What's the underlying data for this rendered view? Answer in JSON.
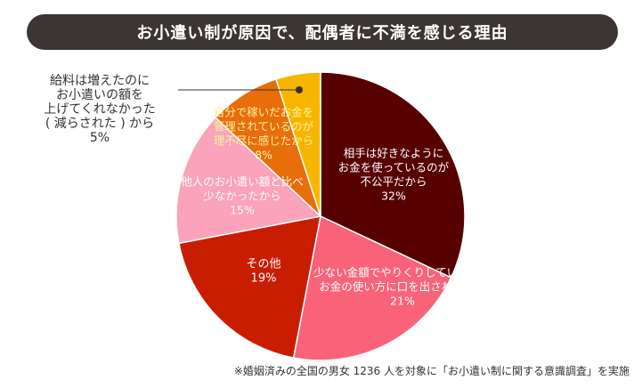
{
  "title": "お小遣い制が原因で、配偶者に不満を感じる理由",
  "footnote": "※婚姻済みの全国の男女 1236 人を対象に「お小遣い制に関する意識調査」を実施",
  "chart_data": {
    "type": "pie",
    "start": "12 o'clock",
    "direction": "clockwise",
    "slices": [
      {
        "label_lines": [
          "相手は好きなように",
          "お金を使っているのが",
          "不公平だから"
        ],
        "value": 32,
        "value_text": "32%",
        "color": "#560000",
        "text_color": "#ffffff"
      },
      {
        "label_lines": [
          "少ない金額でやりくりしているのに",
          "お金の使い方に口を出されたから"
        ],
        "value": 21,
        "value_text": "21%",
        "color": "#f86379",
        "text_color": "#ffffff"
      },
      {
        "label_lines": [
          "その他"
        ],
        "value": 19,
        "value_text": "19%",
        "color": "#c91d02",
        "text_color": "#ffffff"
      },
      {
        "label_lines": [
          "他人のお小遣い額と比べ",
          "少なかったから"
        ],
        "value": 15,
        "value_text": "15%",
        "color": "#faa3ba",
        "text_color": "#ffffff"
      },
      {
        "label_lines": [
          "自分で稼いだお金を",
          "管理されているのが",
          "理不尽に感じたから"
        ],
        "value": 8,
        "value_text": "8%",
        "color": "#e86d0b",
        "text_color": "#fff3a0"
      },
      {
        "label_lines": [
          "給料は増えたのに",
          "お小遣いの額を",
          "上げてくれなかった",
          "( 減らされた ) から"
        ],
        "value": 5,
        "value_text": "5%",
        "color": "#f7b500",
        "text_color": "#333333"
      }
    ]
  }
}
